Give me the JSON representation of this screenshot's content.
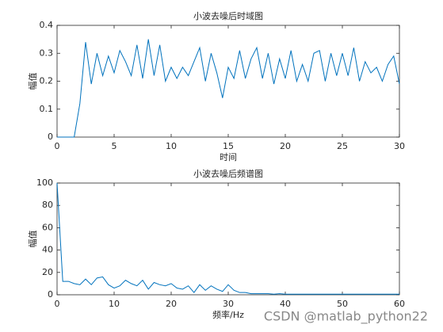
{
  "chart_data": [
    {
      "type": "line",
      "title": "小波去噪后时域图",
      "xlabel": "时间",
      "ylabel": "幅值",
      "color": "#0072bd",
      "x": [
        0,
        0.5,
        1,
        1.5,
        2,
        2.5,
        3,
        3.5,
        4,
        4.5,
        5,
        5.5,
        6,
        6.5,
        7,
        7.5,
        8,
        8.5,
        9,
        9.5,
        10,
        10.5,
        11,
        11.5,
        12,
        12.5,
        13,
        13.5,
        14,
        14.5,
        15,
        15.5,
        16,
        16.5,
        17,
        17.5,
        18,
        18.5,
        19,
        19.5,
        20,
        20.5,
        21,
        21.5,
        22,
        22.5,
        23,
        23.5,
        24,
        24.5,
        25,
        25.5,
        26,
        26.5,
        27,
        27.5,
        28,
        28.5,
        29,
        29.5,
        30
      ],
      "values": [
        0,
        0,
        0,
        0,
        0.12,
        0.34,
        0.19,
        0.3,
        0.22,
        0.29,
        0.23,
        0.31,
        0.27,
        0.22,
        0.33,
        0.21,
        0.35,
        0.22,
        0.33,
        0.2,
        0.25,
        0.21,
        0.25,
        0.22,
        0.27,
        0.32,
        0.2,
        0.3,
        0.23,
        0.14,
        0.25,
        0.21,
        0.31,
        0.21,
        0.28,
        0.32,
        0.21,
        0.3,
        0.19,
        0.28,
        0.21,
        0.31,
        0.2,
        0.26,
        0.2,
        0.3,
        0.31,
        0.2,
        0.3,
        0.22,
        0.3,
        0.22,
        0.32,
        0.2,
        0.27,
        0.23,
        0.25,
        0.2,
        0.26,
        0.29,
        0.19
      ],
      "xlim": [
        0,
        30
      ],
      "xticks": [
        0,
        5,
        10,
        15,
        20,
        25,
        30
      ],
      "ylim": [
        0,
        0.4
      ],
      "yticks": [
        0,
        0.1,
        0.2,
        0.3,
        0.4
      ]
    },
    {
      "type": "line",
      "title": "小波去噪后频谱图",
      "xlabel": "频率/Hz",
      "ylabel": "幅值",
      "color": "#0072bd",
      "x": [
        0,
        1,
        2,
        3,
        4,
        5,
        6,
        7,
        8,
        9,
        10,
        11,
        12,
        13,
        14,
        15,
        16,
        17,
        18,
        19,
        20,
        21,
        22,
        23,
        24,
        25,
        26,
        27,
        28,
        29,
        30,
        31,
        32,
        33,
        34,
        35,
        36,
        37,
        38,
        39,
        40,
        41,
        42,
        43,
        44,
        45,
        46,
        47,
        48,
        49,
        50,
        51,
        52,
        53,
        54,
        55,
        56,
        57,
        58,
        59,
        60
      ],
      "values": [
        100,
        12,
        12,
        10,
        9,
        14,
        9,
        15,
        16,
        9,
        6,
        8,
        13,
        10,
        8,
        13,
        5,
        11,
        9,
        8,
        10,
        6,
        5,
        8,
        2,
        9,
        4,
        8,
        5,
        3,
        9,
        4,
        2,
        2,
        1,
        1,
        1,
        1,
        0.5,
        1,
        0.5,
        0.5,
        0.5,
        0.5,
        0.5,
        0.5,
        0.5,
        0.5,
        0.5,
        0.5,
        0.5,
        0.5,
        0.5,
        0.5,
        0.5,
        0.5,
        0.5,
        0.5,
        0.5,
        0.5,
        0.5
      ],
      "xlim": [
        0,
        60
      ],
      "xticks": [
        0,
        10,
        20,
        30,
        40,
        50,
        60
      ],
      "ylim": [
        0,
        100
      ],
      "yticks": [
        0,
        20,
        40,
        60,
        80,
        100
      ]
    }
  ],
  "watermark": "CSDN @matlab_python22"
}
